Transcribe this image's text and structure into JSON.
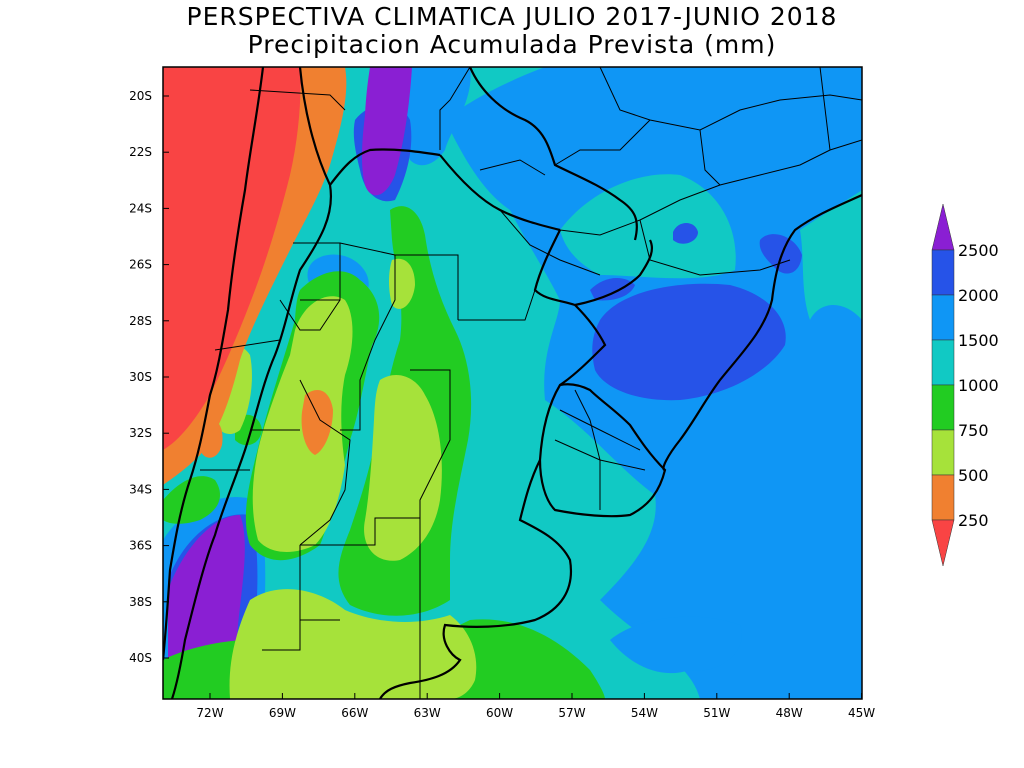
{
  "title": "PERSPECTIVA CLIMATICA JULIO 2017-JUNIO 2018",
  "subtitle": "Precipitacion Acumulada Prevista (mm)",
  "axes": {
    "lat_labels": [
      "20S",
      "22S",
      "24S",
      "26S",
      "28S",
      "30S",
      "32S",
      "34S",
      "36S",
      "38S",
      "40S"
    ],
    "lon_labels": [
      "72W",
      "69W",
      "66W",
      "63W",
      "60W",
      "57W",
      "54W",
      "51W",
      "48W",
      "45W"
    ]
  },
  "colorbar": {
    "levels": [
      "250",
      "500",
      "750",
      "1000",
      "1500",
      "2000",
      "2500"
    ],
    "colors": {
      "below_250": "#f94444",
      "250_500": "#f08030",
      "500_750": "#a6e23a",
      "750_1000": "#22cc22",
      "1000_1500": "#11c9c4",
      "1500_2000": "#0f96f5",
      "2000_2500": "#2653e8",
      "above_2500": "#8a1fd3"
    }
  }
}
